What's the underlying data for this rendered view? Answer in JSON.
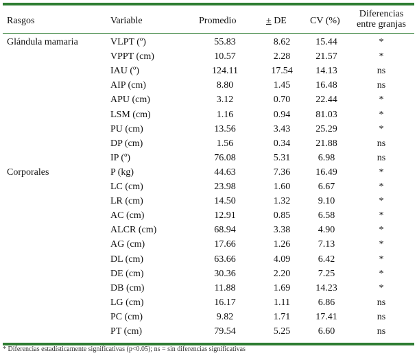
{
  "header": {
    "rasgos": "Rasgos",
    "variable": "Variable",
    "promedio": "Promedio",
    "de_pm": "±",
    "de": " DE",
    "cv": "CV (%)",
    "dif_line1": "Diferencias",
    "dif_line2": "entre granjas"
  },
  "rows": [
    {
      "rasgo": "Glándula mamaria",
      "variable": "VLPT (º)",
      "promedio": "55.83",
      "de": "8.62",
      "cv": "15.44",
      "dif": "*"
    },
    {
      "rasgo": "",
      "variable": "VPPT (cm)",
      "promedio": "10.57",
      "de": "2.28",
      "cv": "21.57",
      "dif": "*"
    },
    {
      "rasgo": "",
      "variable": "IAU (º)",
      "promedio": "124.11",
      "de": "17.54",
      "cv": "14.13",
      "dif": "ns"
    },
    {
      "rasgo": "",
      "variable": "AIP (cm)",
      "promedio": "8.80",
      "de": "1.45",
      "cv": "16.48",
      "dif": "ns"
    },
    {
      "rasgo": "",
      "variable": "APU (cm)",
      "promedio": "3.12",
      "de": "0.70",
      "cv": "22.44",
      "dif": "*"
    },
    {
      "rasgo": "",
      "variable": "LSM (cm)",
      "promedio": "1.16",
      "de": "0.94",
      "cv": "81.03",
      "dif": "*"
    },
    {
      "rasgo": "",
      "variable": "PU (cm)",
      "promedio": "13.56",
      "de": "3.43",
      "cv": "25.29",
      "dif": "*"
    },
    {
      "rasgo": "",
      "variable": "DP (cm)",
      "promedio": "1.56",
      "de": "0.34",
      "cv": "21.88",
      "dif": "ns"
    },
    {
      "rasgo": "",
      "variable": "IP (º)",
      "promedio": "76.08",
      "de": "5.31",
      "cv": "6.98",
      "dif": "ns"
    },
    {
      "rasgo": "Corporales",
      "variable": "P (kg)",
      "promedio": "44.63",
      "de": "7.36",
      "cv": "16.49",
      "dif": "*"
    },
    {
      "rasgo": "",
      "variable": "LC (cm)",
      "promedio": "23.98",
      "de": "1.60",
      "cv": "6.67",
      "dif": "*"
    },
    {
      "rasgo": "",
      "variable": "LR (cm)",
      "promedio": "14.50",
      "de": "1.32",
      "cv": "9.10",
      "dif": "*"
    },
    {
      "rasgo": "",
      "variable": "AC (cm)",
      "promedio": "12.91",
      "de": "0.85",
      "cv": "6.58",
      "dif": "*"
    },
    {
      "rasgo": "",
      "variable": "ALCR (cm)",
      "promedio": "68.94",
      "de": "3.38",
      "cv": "4.90",
      "dif": "*"
    },
    {
      "rasgo": "",
      "variable": "AG (cm)",
      "promedio": "17.66",
      "de": "1.26",
      "cv": "7.13",
      "dif": "*"
    },
    {
      "rasgo": "",
      "variable": "DL (cm)",
      "promedio": "63.66",
      "de": "4.09",
      "cv": "6.42",
      "dif": "*"
    },
    {
      "rasgo": "",
      "variable": "DE (cm)",
      "promedio": "30.36",
      "de": "2.20",
      "cv": "7.25",
      "dif": "*"
    },
    {
      "rasgo": "",
      "variable": "DB (cm)",
      "promedio": "11.88",
      "de": "1.69",
      "cv": "14.23",
      "dif": "*"
    },
    {
      "rasgo": "",
      "variable": "LG (cm)",
      "promedio": "16.17",
      "de": "1.11",
      "cv": "6.86",
      "dif": "ns"
    },
    {
      "rasgo": "",
      "variable": "PC (cm)",
      "promedio": "9.82",
      "de": "1.71",
      "cv": "17.41",
      "dif": "ns"
    },
    {
      "rasgo": "",
      "variable": "PT (cm)",
      "promedio": "79.54",
      "de": "5.25",
      "cv": "6.60",
      "dif": "ns"
    }
  ],
  "footnote": "* Diferencias estadísticamente significativas (p<0.05); ns = sin diferencias significativas"
}
